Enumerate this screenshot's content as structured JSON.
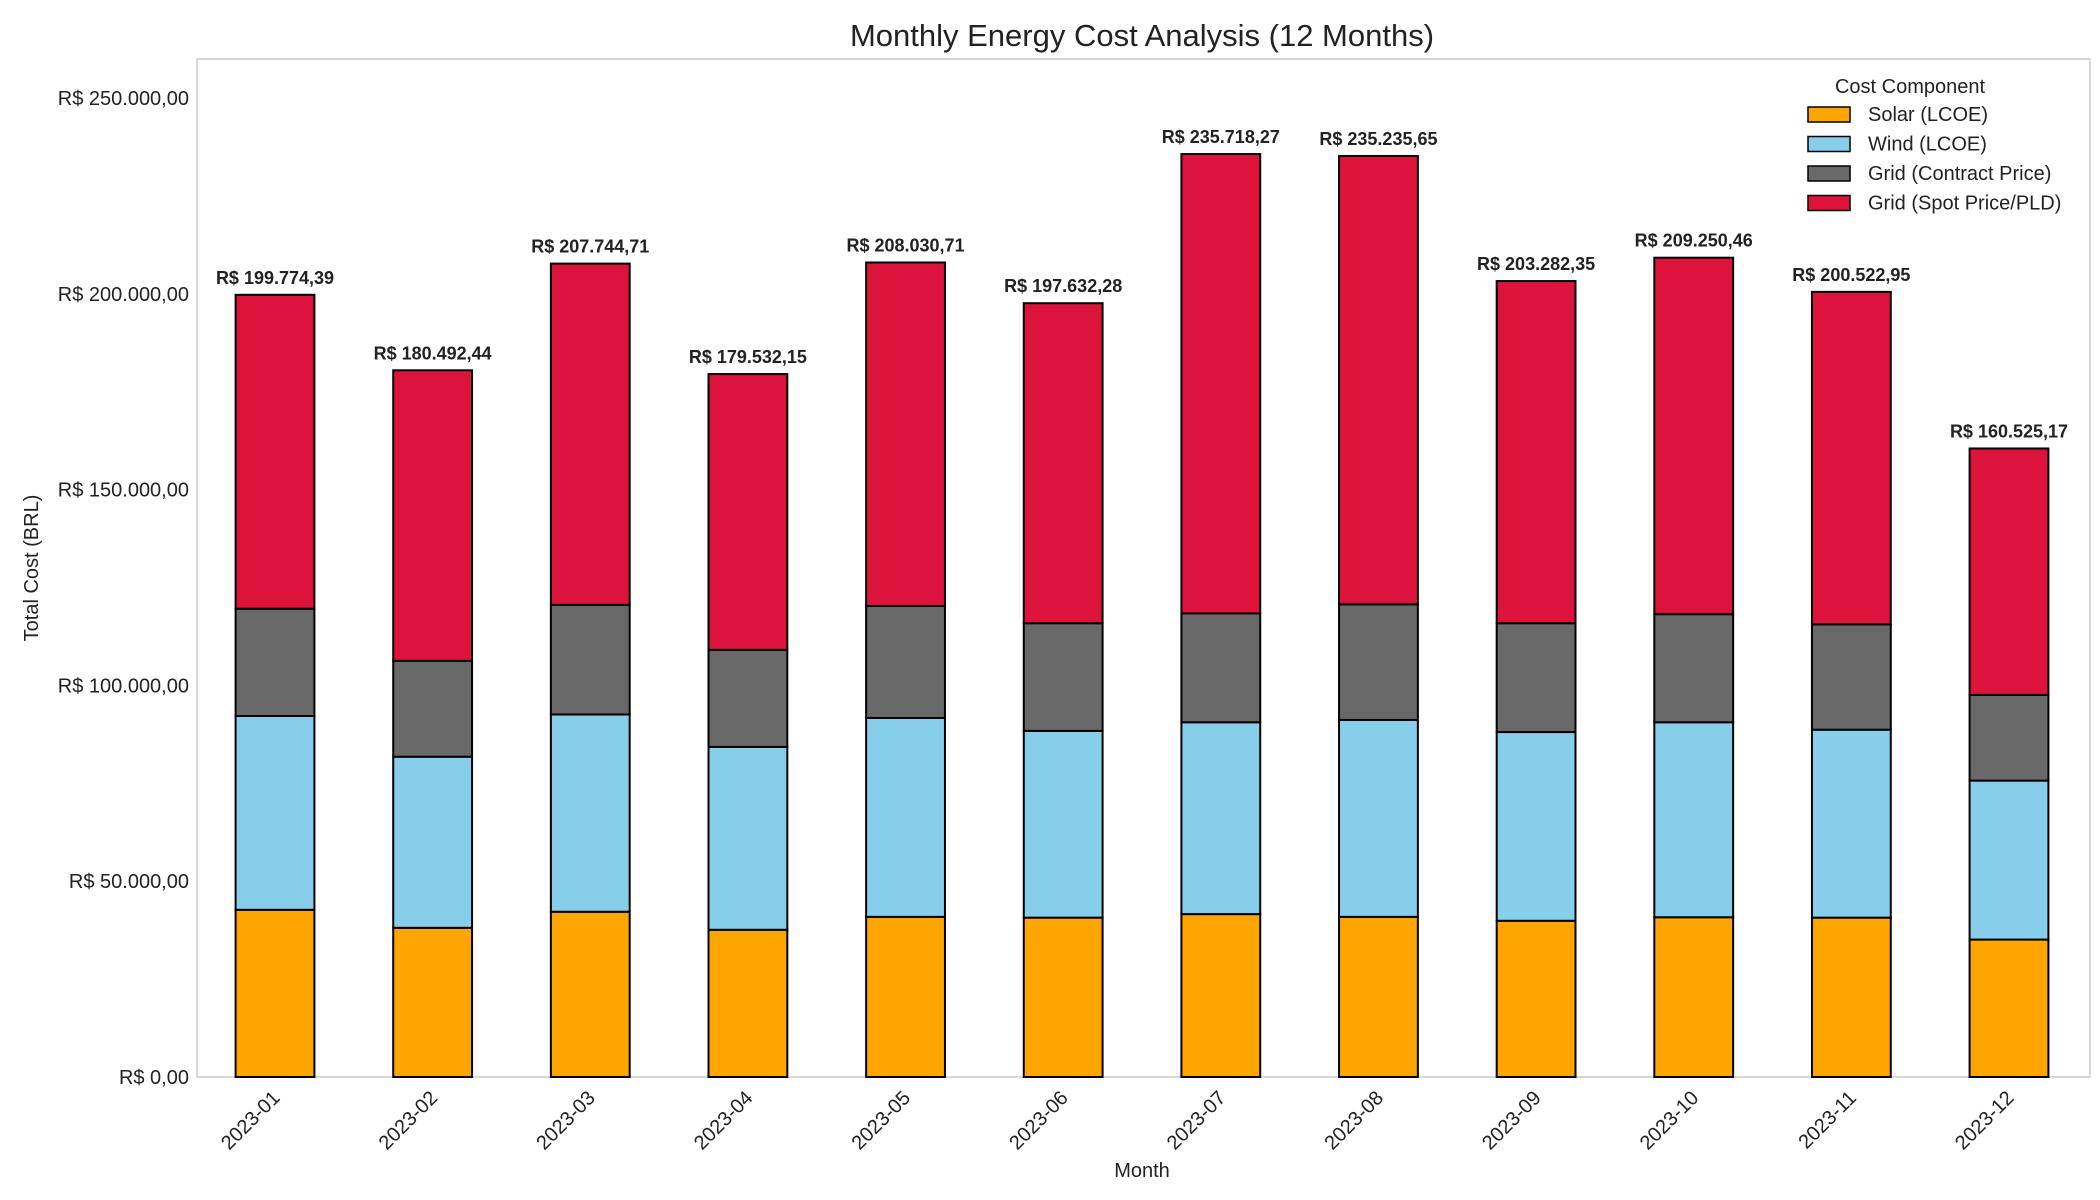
{
  "chart_data": {
    "type": "bar",
    "stacked": true,
    "title": "Monthly Energy Cost Analysis (12 Months)",
    "xlabel": "Month",
    "ylabel": "Total Cost (BRL)",
    "ylim": [
      0,
      260000
    ],
    "yticks": [
      0,
      50000,
      100000,
      150000,
      200000,
      250000
    ],
    "ytick_labels": [
      "R$ 0,00",
      "R$ 50.000,00",
      "R$ 100.000,00",
      "R$ 150.000,00",
      "R$ 200.000,00",
      "R$ 250.000,00"
    ],
    "grid": false,
    "legend_title": "Cost Component",
    "legend_position": "top-right",
    "categories": [
      "2023-01",
      "2023-02",
      "2023-03",
      "2023-04",
      "2023-05",
      "2023-06",
      "2023-07",
      "2023-08",
      "2023-09",
      "2023-10",
      "2023-11",
      "2023-12"
    ],
    "series": [
      {
        "name": "Solar (LCOE)",
        "color": "#FFA500",
        "values": [
          42700,
          38100,
          42200,
          37600,
          40900,
          40700,
          41600,
          40900,
          39900,
          40800,
          40700,
          35100
        ]
      },
      {
        "name": "Wind (LCOE)",
        "color": "#87CEEB",
        "values": [
          49500,
          43700,
          50400,
          46700,
          50800,
          47700,
          49000,
          50300,
          48200,
          49800,
          48000,
          40600
        ]
      },
      {
        "name": "Grid (Contract Price)",
        "color": "#696969",
        "values": [
          27400,
          24500,
          28000,
          24800,
          28600,
          27500,
          27800,
          29500,
          27800,
          27600,
          26900,
          21900
        ]
      },
      {
        "name": "Grid (Spot Price/PLD)",
        "color": "#DC143C",
        "values": [
          80174.39,
          74192.44,
          87144.71,
          70432.15,
          87730.71,
          81732.28,
          117318.27,
          114535.65,
          87382.35,
          91050.46,
          84922.95,
          62925.17
        ]
      }
    ],
    "totals": [
      199774.39,
      180492.44,
      207744.71,
      179532.15,
      208030.71,
      197632.28,
      235718.27,
      235235.65,
      203282.35,
      209250.46,
      200522.95,
      160525.17
    ],
    "total_labels": [
      "R$ 199.774,39",
      "R$ 180.492,44",
      "R$ 207.744,71",
      "R$ 179.532,15",
      "R$ 208.030,71",
      "R$ 197.632,28",
      "R$ 235.718,27",
      "R$ 235.235,65",
      "R$ 203.282,35",
      "R$ 209.250,46",
      "R$ 200.522,95",
      "R$ 160.525,17"
    ]
  }
}
